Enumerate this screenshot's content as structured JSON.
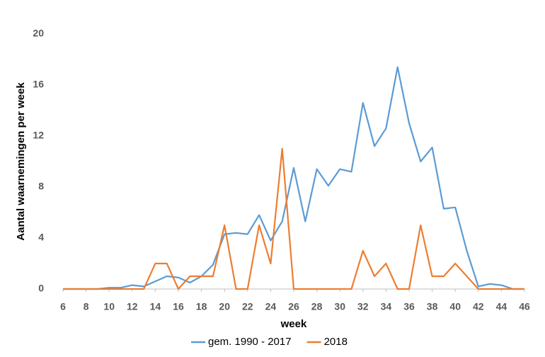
{
  "chart_data": {
    "type": "line",
    "x_label": "week",
    "y_label": "Aantal waarnemingen per week",
    "x": [
      6,
      7,
      8,
      9,
      10,
      11,
      12,
      13,
      14,
      15,
      16,
      17,
      18,
      19,
      20,
      21,
      22,
      23,
      24,
      25,
      26,
      27,
      28,
      29,
      30,
      31,
      32,
      33,
      34,
      35,
      36,
      37,
      38,
      39,
      40,
      41,
      42,
      43,
      44,
      45,
      46
    ],
    "series": [
      {
        "name": "gem. 1990 - 2017",
        "color": "#5b9bd5",
        "values": [
          0,
          0,
          0,
          0,
          0.1,
          0.1,
          0.3,
          0.2,
          0.6,
          1.0,
          0.9,
          0.5,
          1.0,
          1.9,
          4.3,
          4.4,
          4.3,
          5.8,
          3.8,
          5.3,
          9.5,
          5.3,
          9.4,
          8.1,
          9.4,
          9.2,
          14.6,
          11.2,
          12.6,
          17.4,
          13.0,
          10.0,
          11.1,
          6.3,
          6.4,
          3.0,
          0.2,
          0.4,
          0.3,
          0,
          0
        ]
      },
      {
        "name": "2018",
        "color": "#ed7d31",
        "values": [
          0,
          0,
          0,
          0,
          0,
          0,
          0,
          0,
          2,
          2,
          0,
          1,
          1,
          1,
          5,
          0,
          0,
          5,
          2,
          11,
          0,
          0,
          0,
          0,
          0,
          0,
          3,
          1,
          2,
          0,
          0,
          5,
          1,
          1,
          2,
          1,
          0,
          0,
          0,
          0,
          0
        ]
      }
    ],
    "xlim": [
      6,
      46
    ],
    "xticks": [
      6,
      8,
      10,
      12,
      14,
      16,
      18,
      20,
      22,
      24,
      26,
      28,
      30,
      32,
      34,
      36,
      38,
      40,
      42,
      44,
      46
    ],
    "ylim": [
      0,
      20
    ],
    "yticks": [
      0,
      4,
      8,
      12,
      16,
      20
    ],
    "grid": false,
    "legend": "bottom"
  }
}
